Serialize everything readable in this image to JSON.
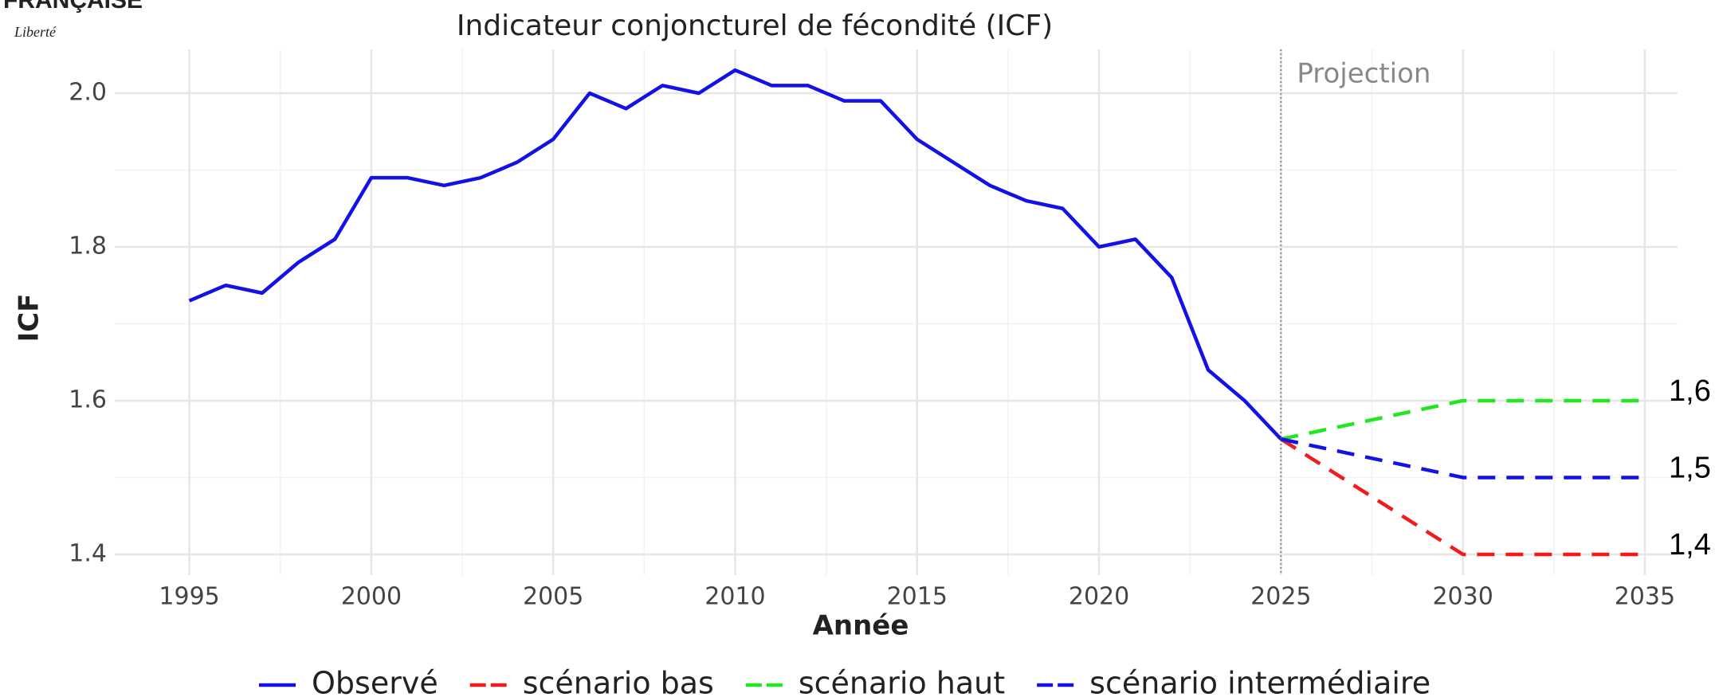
{
  "header": {
    "title": "FRANÇAISE",
    "motto": "Liberté"
  },
  "chart_data": {
    "type": "line",
    "title": "Indicateur conjoncturel de fécondité (ICF)",
    "xlabel": "Année",
    "ylabel": "ICF",
    "annotation": "Projection",
    "vline_x": 2025,
    "xlim": [
      1992.95,
      2035.9
    ],
    "ylim": [
      1.373,
      2.057
    ],
    "xticks": [
      1995,
      2000,
      2005,
      2010,
      2015,
      2020,
      2025,
      2030,
      2035
    ],
    "yticks": [
      {
        "value": 1.4,
        "label": "1.4"
      },
      {
        "value": 1.6,
        "label": "1.6"
      },
      {
        "value": 1.8,
        "label": "1.8"
      },
      {
        "value": 2.0,
        "label": "2.0"
      }
    ],
    "grid": true,
    "legend": "bottom",
    "series": [
      {
        "name": "Observé",
        "color": "#1212e6",
        "dashed": false,
        "x": [
          1995,
          1996,
          1997,
          1998,
          1999,
          2000,
          2001,
          2002,
          2003,
          2004,
          2005,
          2006,
          2007,
          2008,
          2009,
          2010,
          2011,
          2012,
          2013,
          2014,
          2015,
          2016,
          2017,
          2018,
          2019,
          2020,
          2021,
          2022,
          2023,
          2024,
          2025
        ],
        "values": [
          1.73,
          1.75,
          1.74,
          1.78,
          1.81,
          1.89,
          1.89,
          1.88,
          1.89,
          1.91,
          1.94,
          2.0,
          1.98,
          2.01,
          2.0,
          2.03,
          2.01,
          2.01,
          1.99,
          1.99,
          1.94,
          1.91,
          1.88,
          1.86,
          1.85,
          1.8,
          1.81,
          1.76,
          1.64,
          1.6,
          1.55
        ]
      },
      {
        "name": "scénario bas",
        "color": "#ee1c1c",
        "dashed": true,
        "end_label": "1,4",
        "x": [
          2025,
          2030,
          2035
        ],
        "values": [
          1.55,
          1.4,
          1.4
        ]
      },
      {
        "name": "scénario haut",
        "color": "#22e622",
        "dashed": true,
        "end_label": "1,6",
        "x": [
          2025,
          2027,
          2030,
          2035
        ],
        "values": [
          1.55,
          1.57,
          1.6,
          1.6
        ]
      },
      {
        "name": "scénario intermédiaire",
        "color": "#1212e6",
        "dashed": true,
        "end_label": "1,5",
        "x": [
          2025,
          2030,
          2035
        ],
        "values": [
          1.55,
          1.5,
          1.5
        ]
      }
    ]
  }
}
